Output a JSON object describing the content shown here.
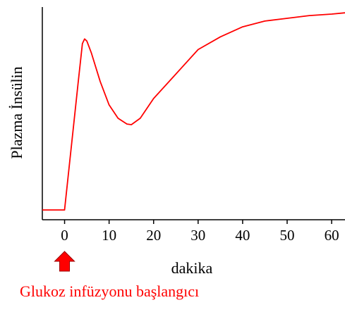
{
  "chart_data": {
    "type": "line",
    "y_label": "Plazma İnsülin",
    "x_label": "dakika",
    "annotation": "Glukoz infüzyonu başlangıcı",
    "x": [
      -5,
      0,
      2,
      3,
      4,
      4.5,
      5,
      6,
      8,
      10,
      12,
      14,
      15,
      17,
      20,
      25,
      30,
      35,
      40,
      45,
      50,
      55,
      60,
      63
    ],
    "series": [
      {
        "color": "#ff0000",
        "values": [
          4.6,
          4.6,
          44,
          63.6,
          82.8,
          85,
          84,
          78.5,
          65,
          54,
          47.7,
          45,
          44.7,
          47.7,
          57,
          68.5,
          80,
          86,
          90.7,
          93.4,
          94.7,
          96,
          96.7,
          97.3
        ]
      }
    ],
    "xlim": [
      -5,
      63
    ],
    "ylim": [
      0,
      100
    ],
    "xticks": [
      0,
      10,
      20,
      30,
      40,
      50,
      60
    ]
  }
}
